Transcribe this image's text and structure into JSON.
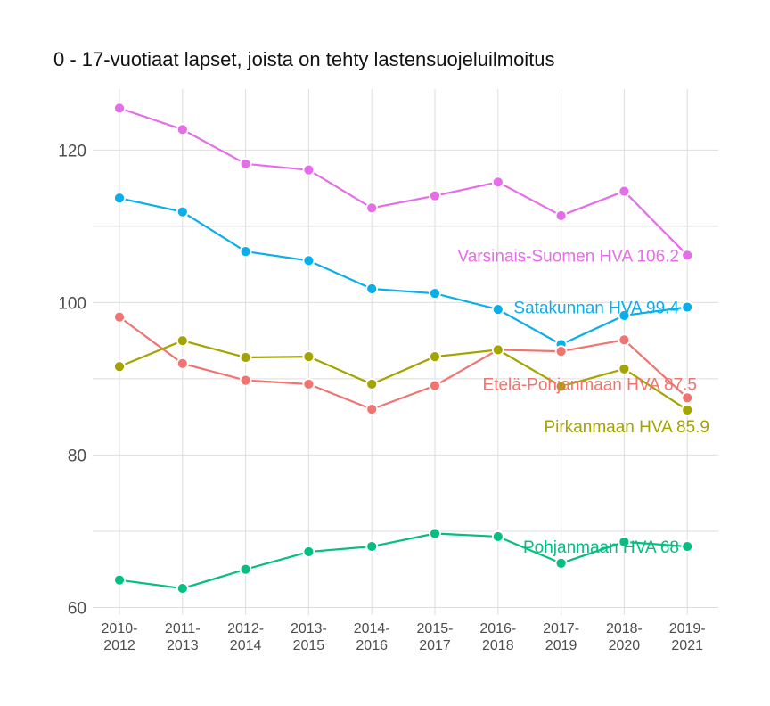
{
  "chart_data": {
    "type": "line",
    "title": "0 - 17-vuotiaat lapset, joista on tehty lastensuojeluilmoitus",
    "xlabel": "",
    "ylabel": "",
    "categories": [
      [
        "2010-",
        "2012"
      ],
      [
        "2011-",
        "2013"
      ],
      [
        "2012-",
        "2014"
      ],
      [
        "2013-",
        "2015"
      ],
      [
        "2014-",
        "2016"
      ],
      [
        "2015-",
        "2017"
      ],
      [
        "2016-",
        "2018"
      ],
      [
        "2017-",
        "2019"
      ],
      [
        "2018-",
        "2020"
      ],
      [
        "2019-",
        "2021"
      ]
    ],
    "ylim": [
      59,
      128
    ],
    "yticks": [
      60,
      80,
      100,
      120
    ],
    "ytick_labels": [
      "60",
      "80",
      "100",
      "120"
    ],
    "grid": true,
    "series": [
      {
        "name": "Varsinais-Suomen HVA",
        "end_label": "Varsinais-Suomen HVA 106.2",
        "color": "#e56ee8",
        "values": [
          125.5,
          122.7,
          118.2,
          117.4,
          112.4,
          114.0,
          115.8,
          111.4,
          114.6,
          106.2
        ]
      },
      {
        "name": "Satakunnan HVA",
        "end_label": "Satakunnan HVA 99.4",
        "color": "#0aaeea",
        "values": [
          113.7,
          111.9,
          106.7,
          105.5,
          101.8,
          101.2,
          99.1,
          94.5,
          98.3,
          99.4
        ]
      },
      {
        "name": "Etelä-Pohjanmaan HVA",
        "end_label": "Etelä-Pohjanmaan HVA 87.5",
        "color": "#f07470",
        "values": [
          98.1,
          92.0,
          89.8,
          89.3,
          86.0,
          89.1,
          93.8,
          93.6,
          95.1,
          87.5
        ]
      },
      {
        "name": "Pirkanmaan HVA",
        "end_label": "Pirkanmaan HVA 85.9",
        "color": "#a3a400",
        "values": [
          91.6,
          95.0,
          92.8,
          92.9,
          89.3,
          92.9,
          93.8,
          89.0,
          91.3,
          85.9
        ]
      },
      {
        "name": "Pohjanmaan HVA",
        "end_label": "Pohjanmaan HVA 68",
        "color": "#06bf7f",
        "values": [
          63.6,
          62.5,
          65.0,
          67.3,
          68.0,
          69.7,
          69.3,
          65.8,
          68.6,
          68.0
        ]
      }
    ]
  }
}
